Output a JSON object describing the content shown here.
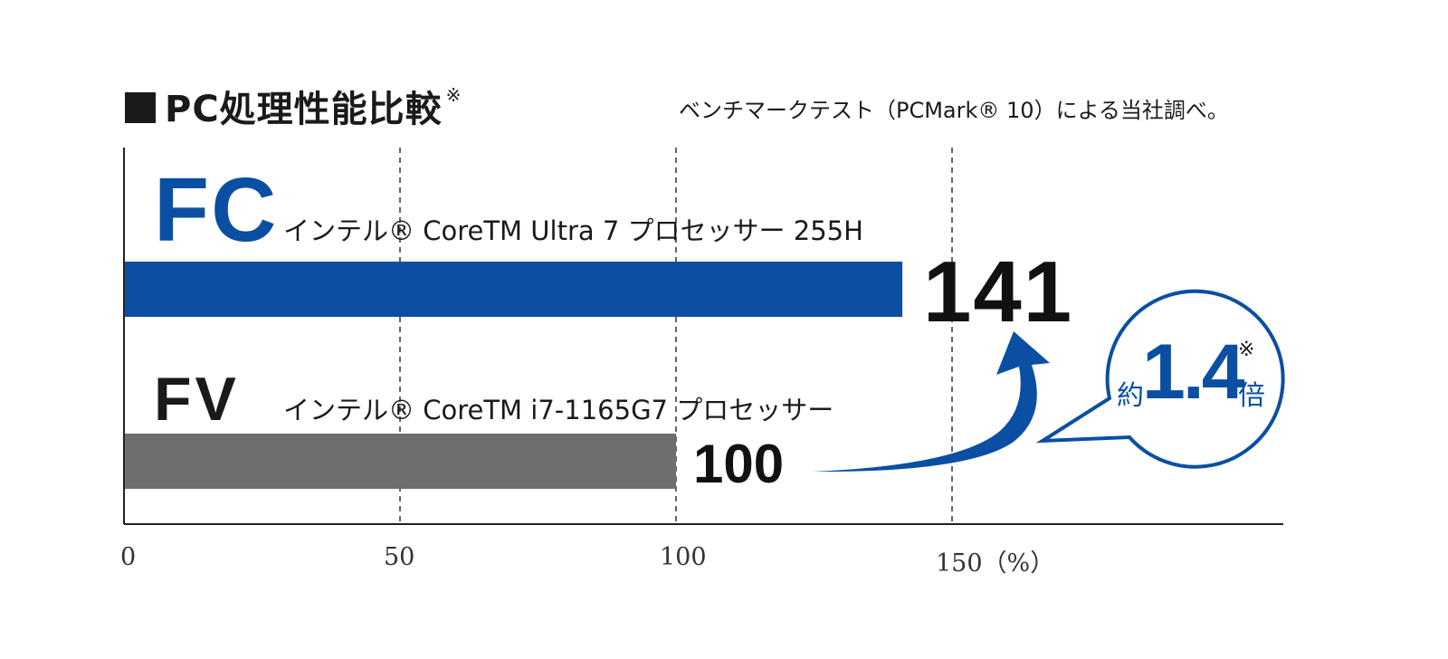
{
  "header": {
    "title": "PC処理性能比較",
    "title_mark": "※",
    "note": "ベンチマークテスト（PCMark® 10）による当社調べ。"
  },
  "colors": {
    "fc_bar": "#0a4fa3",
    "fv_bar": "#6d6e70",
    "accent": "#0a4fa3"
  },
  "chart_data": {
    "type": "bar",
    "orientation": "horizontal",
    "title": "PC処理性能比較",
    "categories": [
      "FC",
      "FV"
    ],
    "cpu_labels": [
      "インテル® CoreTM Ultra 7 プロセッサー 255H",
      "インテル® CoreTM i7-1165G7 プロセッサー"
    ],
    "values": [
      141,
      100
    ],
    "value_labels": [
      "141",
      "100"
    ],
    "xlim": [
      0,
      210
    ],
    "xticks": [
      0,
      50,
      100,
      150
    ],
    "xtick_labels": [
      "0",
      "50",
      "100",
      "150（%）"
    ],
    "grid": "dashed vertical at 50, 100, 150",
    "annotation": {
      "prefix": "約",
      "value": "1.4",
      "mark": "※",
      "suffix": "倍"
    }
  }
}
